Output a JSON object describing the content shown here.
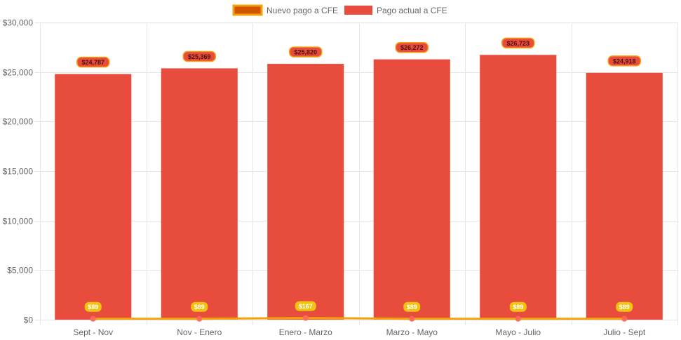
{
  "colors": {
    "bar_fill": "#e74c3c",
    "line_color": "#f5a10d",
    "line_legend_fill": "#d35400",
    "point_fill": "#ff6b5a",
    "bar_label_fill": "#e74c3c",
    "bar_label_border": "#f5a10d",
    "bar_label_text": "#4a1010",
    "line_label_fill": "#f1c40f",
    "line_label_text": "#ffffff",
    "grid": "#e6e6e6",
    "axis_text": "#666666"
  },
  "chart_data": {
    "type": "bar",
    "categories": [
      "Sept - Nov",
      "Nov - Enero",
      "Enero - Marzo",
      "Marzo - Mayo",
      "Mayo - Julio",
      "Julio - Sept"
    ],
    "series": [
      {
        "name": "Nuevo pago a CFE",
        "type": "line",
        "values": [
          89,
          89,
          167,
          89,
          89,
          89
        ],
        "labels": [
          "$89",
          "$89",
          "$167",
          "$89",
          "$89",
          "$89"
        ]
      },
      {
        "name": "Pago actual a CFE",
        "type": "bar",
        "values": [
          24787,
          25369,
          25820,
          26272,
          26723,
          24918
        ],
        "labels": [
          "$24,787",
          "$25,369",
          "$25,820",
          "$26,272",
          "$26,723",
          "$24,918"
        ]
      }
    ],
    "y_ticks": [
      0,
      5000,
      10000,
      15000,
      20000,
      25000,
      30000
    ],
    "y_tick_labels": [
      "$0",
      "$5,000",
      "$10,000",
      "$15,000",
      "$20,000",
      "$25,000",
      "$30,000"
    ],
    "ylim": [
      0,
      30000
    ],
    "grid": true,
    "legend_position": "top"
  }
}
